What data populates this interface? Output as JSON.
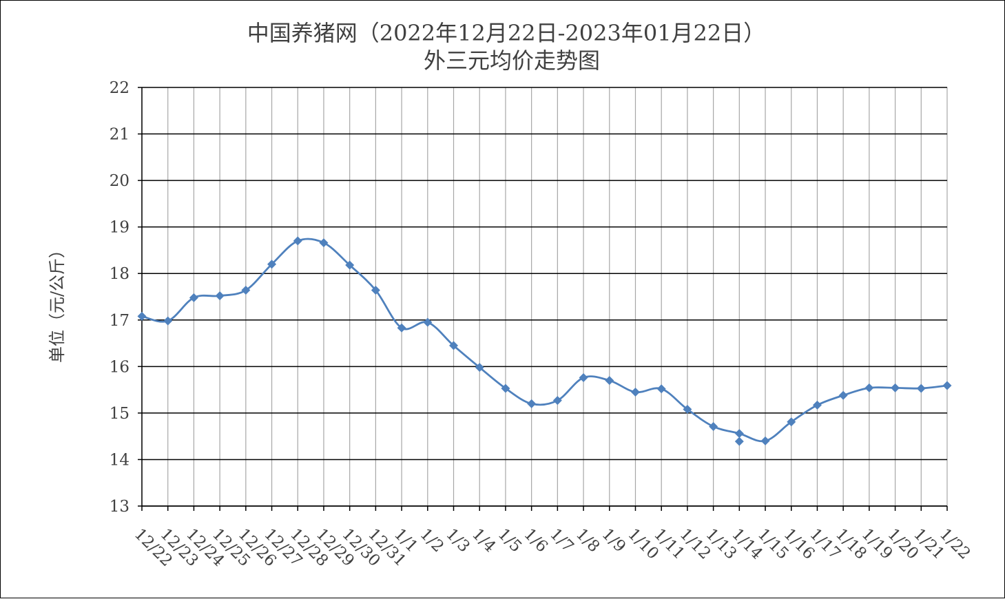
{
  "chart_data": {
    "type": "line",
    "title_line1": "中国养猪网（2022年12月22日-2023年01月22日）",
    "title_line2": "外三元均价走势图",
    "ylabel": "单位（元/公斤）",
    "xlabel": "",
    "ylim": [
      13,
      22
    ],
    "yticks": [
      13,
      14,
      15,
      16,
      17,
      18,
      19,
      20,
      21,
      22
    ],
    "grid": true,
    "categories": [
      "12/22",
      "12/23",
      "12/24",
      "12/25",
      "12/26",
      "12/27",
      "12/28",
      "12/29",
      "12/30",
      "12/31",
      "1/1",
      "1/2",
      "1/3",
      "1/4",
      "1/5",
      "1/6",
      "1/7",
      "1/8",
      "1/9",
      "1/10",
      "1/11",
      "1/12",
      "1/13",
      "1/14",
      "1/15",
      "1/16",
      "1/17",
      "1/18",
      "1/19",
      "1/20",
      "1/21",
      "1/22"
    ],
    "series": [
      {
        "color": "#4F81BD",
        "marker": "diamond",
        "values": [
          17.08,
          16.98,
          17.48,
          17.52,
          17.64,
          18.2,
          18.7,
          18.66,
          18.18,
          17.64,
          16.83,
          16.95,
          16.45,
          15.98,
          15.53,
          15.2,
          15.27,
          15.76,
          15.7,
          15.45,
          15.52,
          15.08,
          14.71,
          14.56,
          14.4,
          14.81,
          15.17,
          15.38,
          15.54,
          15.54,
          15.53,
          15.59
        ],
        "extra_points": [
          {
            "category": "1/14",
            "value": 14.39
          }
        ]
      }
    ]
  }
}
